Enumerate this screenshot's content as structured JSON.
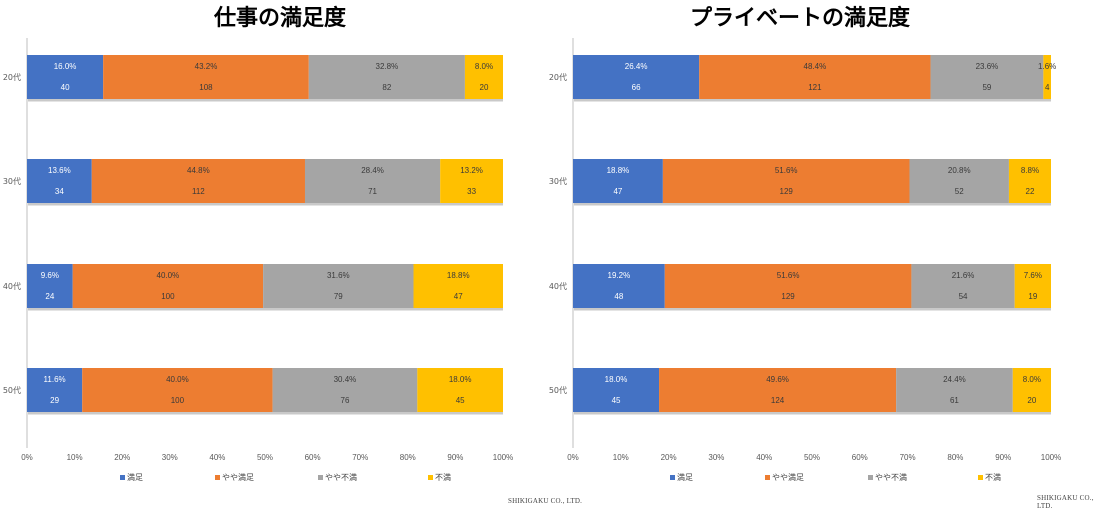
{
  "titles": {
    "left": "仕事の満足度",
    "right": "プライベートの満足度"
  },
  "credits": {
    "left": "SHIKIGAKU CO., LTD.",
    "right": "SHIKIGAKU CO., LTD."
  },
  "colors": {
    "satisfied": "#4472C4",
    "somewhat_satisfied": "#ED7D31",
    "somewhat_dissatisfied": "#A5A5A5",
    "dissatisfied": "#FFC000"
  },
  "chart_data": [
    {
      "type": "bar",
      "orientation": "horizontal",
      "stacked": "100%",
      "title": "仕事の満足度",
      "categories": [
        "20代",
        "30代",
        "40代",
        "50代"
      ],
      "series": [
        {
          "name": "満足",
          "values": [
            40,
            34,
            24,
            29
          ],
          "percent_labels": [
            "16.0%",
            "13.6%",
            "9.6%",
            "11.6%"
          ]
        },
        {
          "name": "やや満足",
          "values": [
            108,
            112,
            100,
            100
          ],
          "percent_labels": [
            "43.2%",
            "44.8%",
            "40.0%",
            "40.0%"
          ]
        },
        {
          "name": "やや不満",
          "values": [
            82,
            71,
            79,
            76
          ],
          "percent_labels": [
            "32.8%",
            "28.4%",
            "31.6%",
            "30.4%"
          ]
        },
        {
          "name": "不満",
          "values": [
            20,
            33,
            47,
            45
          ],
          "percent_labels": [
            "8.0%",
            "13.2%",
            "18.8%",
            "18.0%"
          ]
        }
      ],
      "x_ticks": [
        "0%",
        "10%",
        "20%",
        "30%",
        "40%",
        "50%",
        "60%",
        "70%",
        "80%",
        "90%",
        "100%"
      ],
      "xlim": [
        0,
        100
      ],
      "legend": "bottom",
      "grid": false
    },
    {
      "type": "bar",
      "orientation": "horizontal",
      "stacked": "100%",
      "title": "プライベートの満足度",
      "categories": [
        "20代",
        "30代",
        "40代",
        "50代"
      ],
      "series": [
        {
          "name": "満足",
          "values": [
            66,
            47,
            48,
            45
          ],
          "percent_labels": [
            "26.4%",
            "18.8%",
            "19.2%",
            "18.0%"
          ]
        },
        {
          "name": "やや満足",
          "values": [
            121,
            129,
            129,
            124
          ],
          "percent_labels": [
            "48.4%",
            "51.6%",
            "51.6%",
            "49.6%"
          ]
        },
        {
          "name": "やや不満",
          "values": [
            59,
            52,
            54,
            61
          ],
          "percent_labels": [
            "23.6%",
            "20.8%",
            "21.6%",
            "24.4%"
          ]
        },
        {
          "name": "不満",
          "values": [
            4,
            22,
            19,
            20
          ],
          "percent_labels": [
            "1.6%",
            "8.8%",
            "7.6%",
            "8.0%"
          ]
        }
      ],
      "x_ticks": [
        "0%",
        "10%",
        "20%",
        "30%",
        "40%",
        "50%",
        "60%",
        "70%",
        "80%",
        "90%",
        "100%"
      ],
      "xlim": [
        0,
        100
      ],
      "legend": "bottom",
      "grid": false
    }
  ]
}
